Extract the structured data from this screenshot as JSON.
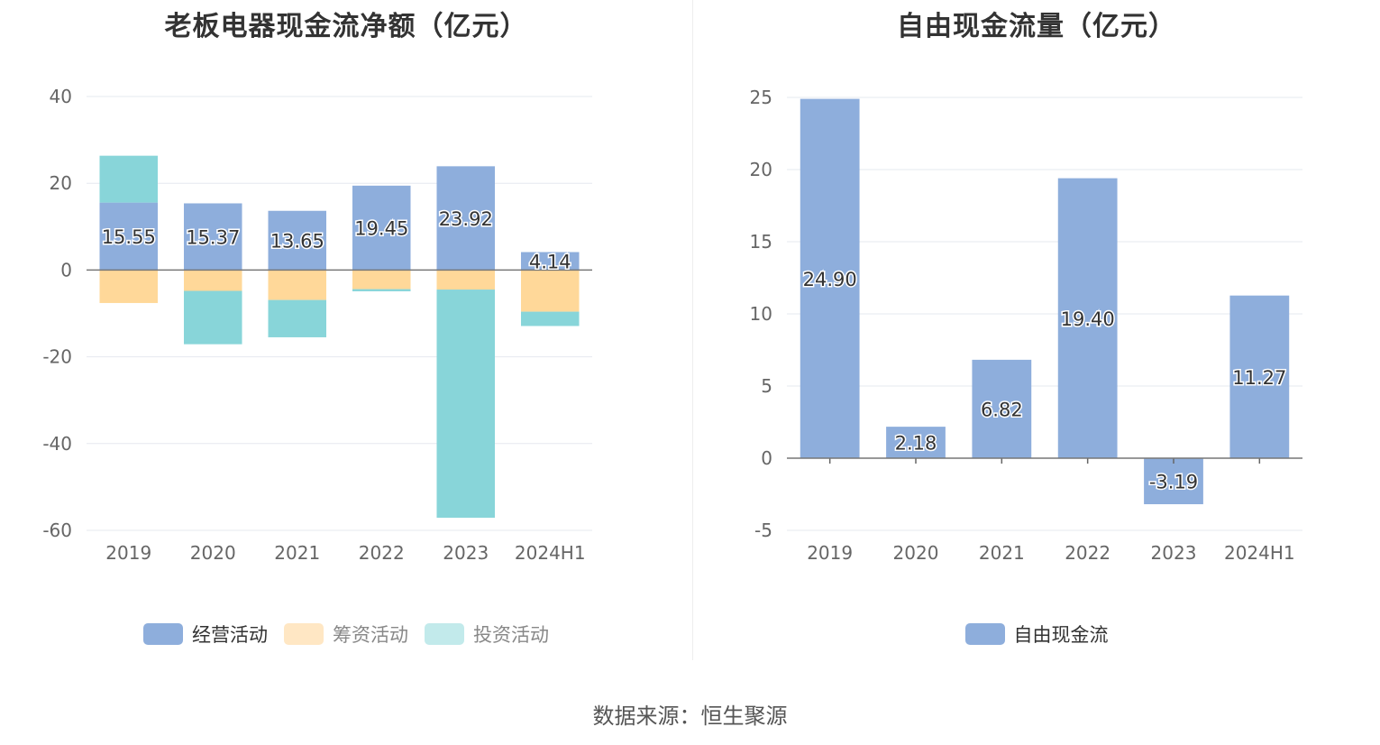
{
  "source_text": "数据来源：恒生聚源",
  "chart_data": [
    {
      "type": "bar",
      "stacked": true,
      "title": "老板电器现金流净额（亿元）",
      "categories": [
        "2019",
        "2020",
        "2021",
        "2022",
        "2023",
        "2024H1"
      ],
      "ylim": [
        -60,
        40
      ],
      "yticks": [
        40,
        20,
        0,
        -20,
        -40,
        -60
      ],
      "series": [
        {
          "name": "经营活动",
          "color": "#8eaedc",
          "values": [
            15.55,
            15.37,
            13.65,
            19.45,
            23.92,
            4.14
          ],
          "labels": [
            "15.55",
            "15.37",
            "13.65",
            "19.45",
            "23.92",
            "4.14"
          ]
        },
        {
          "name": "筹资活动",
          "color": "#ffd899",
          "values": [
            -7.6,
            -4.8,
            -6.9,
            -4.4,
            -4.5,
            -9.6
          ]
        },
        {
          "name": "投资活动",
          "color": "#88d5d9",
          "values": [
            10.8,
            -12.3,
            -8.6,
            -0.5,
            -52.6,
            -3.3
          ]
        }
      ],
      "legend": [
        {
          "name": "经营活动",
          "color": "#8eaedc",
          "active": true
        },
        {
          "name": "筹资活动",
          "color": "#ffe7c4",
          "active": false
        },
        {
          "name": "投资活动",
          "color": "#c2eaeb",
          "active": false
        }
      ]
    },
    {
      "type": "bar",
      "title": "自由现金流量（亿元）",
      "categories": [
        "2019",
        "2020",
        "2021",
        "2022",
        "2023",
        "2024H1"
      ],
      "ylim": [
        -5,
        25
      ],
      "yticks": [
        25,
        20,
        15,
        10,
        5,
        0,
        -5
      ],
      "series": [
        {
          "name": "自由现金流",
          "color": "#8eaedc",
          "values": [
            24.9,
            2.18,
            6.82,
            19.4,
            -3.19,
            11.27
          ],
          "labels": [
            "24.90",
            "2.18",
            "6.82",
            "19.40",
            "-3.19",
            "11.27"
          ]
        }
      ],
      "legend": [
        {
          "name": "自由现金流",
          "color": "#8eaedc",
          "active": true
        }
      ]
    }
  ]
}
